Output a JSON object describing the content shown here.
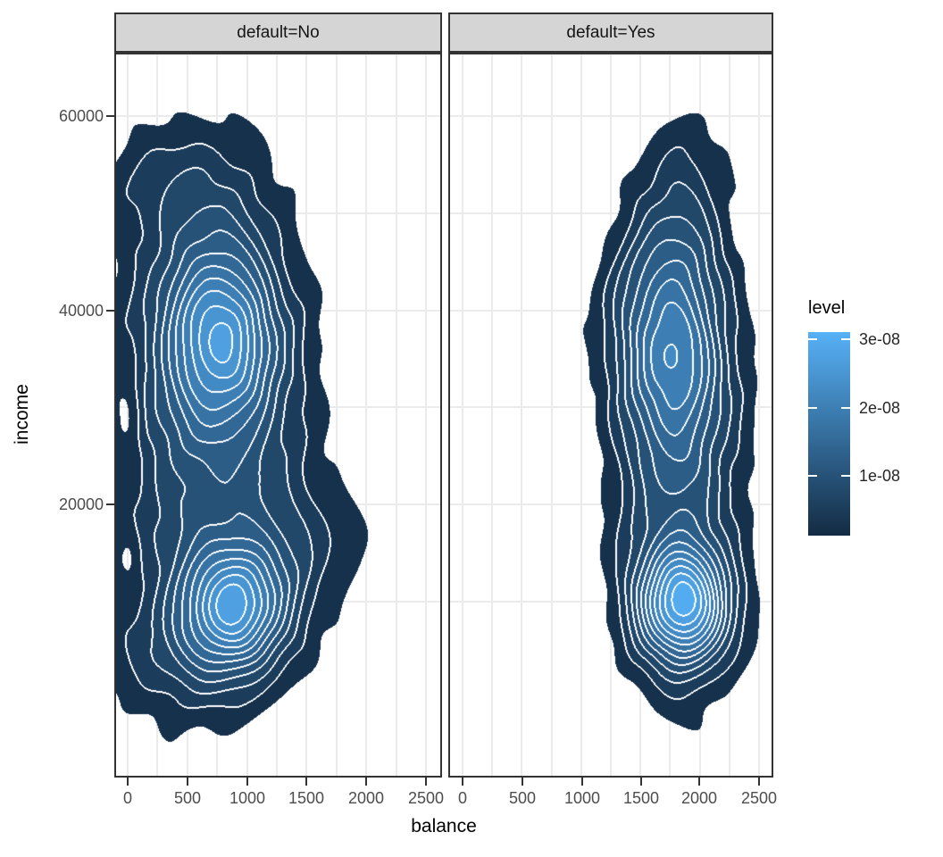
{
  "chart_data": {
    "type": "filled_contour_density_2d",
    "title": "",
    "xlabel": "balance",
    "ylabel": "income",
    "facet_variable": "default",
    "x_ticks": [
      0,
      500,
      1000,
      1500,
      2000,
      2500
    ],
    "x_tick_labels": [
      "0",
      "500",
      "1000",
      "1500",
      "2000",
      "2500"
    ],
    "y_ticks": [
      60000,
      40000,
      20000
    ],
    "y_tick_labels": [
      "60000",
      "40000",
      "20000"
    ],
    "x_grid_values": [
      0,
      250,
      500,
      750,
      1000,
      1250,
      1500,
      1750,
      2000,
      2250,
      2500
    ],
    "y_grid_values": [
      10000,
      20000,
      30000,
      40000,
      50000,
      60000
    ],
    "y_range": [
      -7950,
      66345
    ],
    "grid_color": "#ebebeb",
    "color_low": "#132B43",
    "color_high": "#56B1F7",
    "contour_level_step": 2.5e-09,
    "band_step_e8": 0.25,
    "color_scale_max_e8": 3.0,
    "noise_amp_e8": 0.085,
    "legend": {
      "title": "level",
      "tick_labels": [
        "3e-08",
        "2e-08",
        "1e-08"
      ],
      "tick_values": [
        3e-08,
        2e-08,
        1e-08
      ],
      "range": [
        0,
        3.1e-08
      ]
    },
    "facets": [
      {
        "label": "default=No",
        "x_range": [
          -97,
          2620
        ],
        "seed": 0,
        "peaks": [
          {
            "balance": 780,
            "income": 37500,
            "density": 2.8e-08
          },
          {
            "balance": 880,
            "income": 9300,
            "density": 2.9e-08
          }
        ],
        "bumps": [
          {
            "a": 2.2,
            "x": 780,
            "y": 37500,
            "sx": 330,
            "sy": 6800
          },
          {
            "a": 2.2,
            "x": 880,
            "y": 9300,
            "sx": 300,
            "sy": 4300
          },
          {
            "a": 0.9,
            "x": 650,
            "y": 25000,
            "sx": 600,
            "sy": 15000
          },
          {
            "a": 0.55,
            "x": 450,
            "y": 53000,
            "sx": 480,
            "sy": 5200
          },
          {
            "a": 0.45,
            "x": 1280,
            "y": 16000,
            "sx": 440,
            "sy": 5500
          },
          {
            "a": 0.4,
            "x": 380,
            "y": 4000,
            "sx": 450,
            "sy": 4500
          },
          {
            "a": -0.3,
            "x": 20,
            "y": 28000,
            "sx": 80,
            "sy": 5000
          },
          {
            "a": -0.25,
            "x": 25,
            "y": 14000,
            "sx": 70,
            "sy": 2500
          }
        ]
      },
      {
        "label": "default=Yes",
        "x_range": [
          -105,
          2606
        ],
        "seed": 2.6,
        "peaks": [
          {
            "balance": 1860,
            "income": 9800,
            "density": 3.2e-08
          },
          {
            "balance": 1790,
            "income": 36500,
            "density": 2.2e-08
          }
        ],
        "bumps": [
          {
            "a": 2.6,
            "x": 1860,
            "y": 9800,
            "sx": 260,
            "sy": 4300
          },
          {
            "a": 1.65,
            "x": 1790,
            "y": 36500,
            "sx": 290,
            "sy": 8500
          },
          {
            "a": 0.85,
            "x": 1810,
            "y": 22000,
            "sx": 380,
            "sy": 14000
          },
          {
            "a": 0.4,
            "x": 1850,
            "y": 53000,
            "sx": 260,
            "sy": 6000
          },
          {
            "a": 0.3,
            "x": 1450,
            "y": 40000,
            "sx": 280,
            "sy": 7000
          }
        ]
      }
    ]
  }
}
